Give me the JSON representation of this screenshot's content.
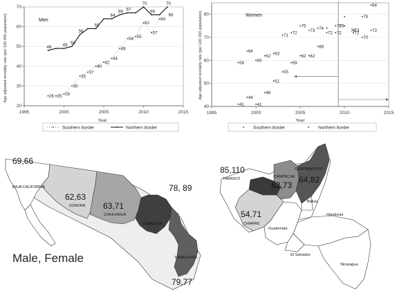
{
  "chart_data": [
    {
      "type": "line",
      "title": "Men",
      "xlabel": "Year",
      "ylabel": "Age adjusted mortality rate (per 100 000 population)",
      "xlim": [
        1995,
        2015
      ],
      "ylim": [
        20,
        70
      ],
      "x_ticks": [
        "1995",
        "2000",
        "2005",
        "2010",
        "2015"
      ],
      "y_ticks": [
        "20",
        "30",
        "40",
        "50",
        "60",
        "70"
      ],
      "legend": [
        "Southern border",
        "Northern border"
      ],
      "legend_position": "bottom",
      "series": [
        {
          "name": "Southern border",
          "style": "dots",
          "x": [
            1998,
            1999,
            2000,
            2001,
            2002,
            2003,
            2004,
            2005,
            2006,
            2007,
            2008,
            2009,
            2010,
            2011,
            2012
          ],
          "y": [
            25,
            25,
            26,
            30,
            35,
            37,
            40,
            42,
            44,
            49,
            54,
            55,
            62,
            57,
            64
          ],
          "labels": [
            "25",
            "25",
            "26",
            "30",
            "35",
            "37",
            "40",
            "42",
            "44",
            "49",
            "54",
            "55",
            "62",
            "57",
            "64"
          ]
        },
        {
          "name": "Northern border",
          "style": "line",
          "x": [
            1998,
            1999,
            2000,
            2001,
            2002,
            2003,
            2004,
            2005,
            2006,
            2007,
            2008,
            2009,
            2010,
            2011,
            2012,
            2013
          ],
          "y": [
            48,
            49,
            49,
            50,
            56,
            59,
            59,
            64,
            64,
            66,
            67,
            67,
            70,
            66,
            66,
            70
          ],
          "labels": [
            "48",
            "",
            "49",
            "50",
            "56",
            "",
            "59",
            "",
            "64",
            "66",
            "67",
            "",
            "70",
            "66",
            "",
            "70"
          ]
        },
        {
          "name": "",
          "style": "plain-labels",
          "x": [
            2013
          ],
          "y": [
            66
          ],
          "labels": [
            "66"
          ]
        }
      ]
    },
    {
      "type": "scatter",
      "title": "Women",
      "xlabel": "Year",
      "ylabel": "Age adjusted mortality rate (per 100 000 population)",
      "xlim": [
        1995,
        2015
      ],
      "ylim": [
        40,
        85
      ],
      "x_ticks": [
        "1995",
        "2000",
        "2005",
        "2010",
        "2015"
      ],
      "y_ticks": [
        "40",
        "50",
        "60",
        "70",
        "80"
      ],
      "legend": [
        "Southern border",
        "Northern border"
      ],
      "legend_position": "bottom",
      "series": [
        {
          "name": "Southern border",
          "style": "dots",
          "x": [
            1998,
            1999,
            2000,
            2001,
            2002,
            2003,
            2004,
            2005,
            2006,
            2007,
            2008,
            2009,
            2010,
            2011,
            2012,
            2013
          ],
          "y": [
            41,
            44,
            41,
            46,
            51,
            55,
            59,
            62,
            62,
            66,
            72,
            75,
            79,
            73,
            79,
            84
          ],
          "labels": [
            "41",
            "44",
            "41",
            "46",
            "51",
            "55",
            "59",
            "62",
            "62",
            "66",
            "72",
            "75",
            "",
            "73",
            "79",
            "84"
          ]
        },
        {
          "name": "Northern border",
          "style": "dots",
          "x": [
            1998,
            1999,
            2000,
            2001,
            2002,
            2003,
            2004,
            2005,
            2006,
            2007,
            2008,
            2009,
            2010,
            2011,
            2012,
            2013
          ],
          "y": [
            59,
            64,
            60,
            62,
            63,
            71,
            72,
            75,
            73,
            74,
            74,
            72,
            75,
            72,
            70,
            73
          ],
          "labels": [
            "59",
            "64",
            "60",
            "62",
            "63",
            "71",
            "72",
            "75",
            "73",
            "74",
            "",
            "72",
            "",
            "72",
            "70",
            "73"
          ]
        },
        {
          "name": "",
          "style": "plain-labels",
          "x": [
            2009.3,
            2010.6
          ],
          "y": [
            75,
            73
          ],
          "labels": [
            "75",
            "73"
          ]
        }
      ],
      "reference_line_x": 2009.3,
      "arrow_left_y": 53,
      "arrow_right_y": 43
    }
  ],
  "map_data": {
    "caption": "Male, Female",
    "left_map": {
      "states": [
        {
          "name": "BAJA CALIFORNIA",
          "value": "69,66",
          "fill": "#ffffff"
        },
        {
          "name": "SONORA",
          "value": "62,63",
          "fill": "#d4d4d4"
        },
        {
          "name": "CHIHUAHUA",
          "value": "63,71",
          "fill": "#a6a6a6"
        },
        {
          "name": "COAHUILA",
          "value": "78, 89",
          "fill": "#3f3f3f"
        },
        {
          "name": "TAMAULIPAS",
          "value": "79,77",
          "fill": "#5f5f5f"
        }
      ],
      "outline_fill": "#eeeeee"
    },
    "right_map": {
      "states": [
        {
          "name": "TABASCO",
          "value": "85,110",
          "fill": "#3a3a3a"
        },
        {
          "name": "CAMPECHE",
          "value": "62,73",
          "fill": "#8d8d8d"
        },
        {
          "name": "QUINTANA ROO",
          "value": "64,82",
          "fill": "#555555"
        },
        {
          "name": "CHIAPAS",
          "value": "54,71",
          "fill": "#d4d4d4"
        }
      ],
      "countries": [
        "Belize",
        "Honduras",
        "Guatemala",
        "El Salvador",
        "Nicaragua"
      ]
    }
  }
}
